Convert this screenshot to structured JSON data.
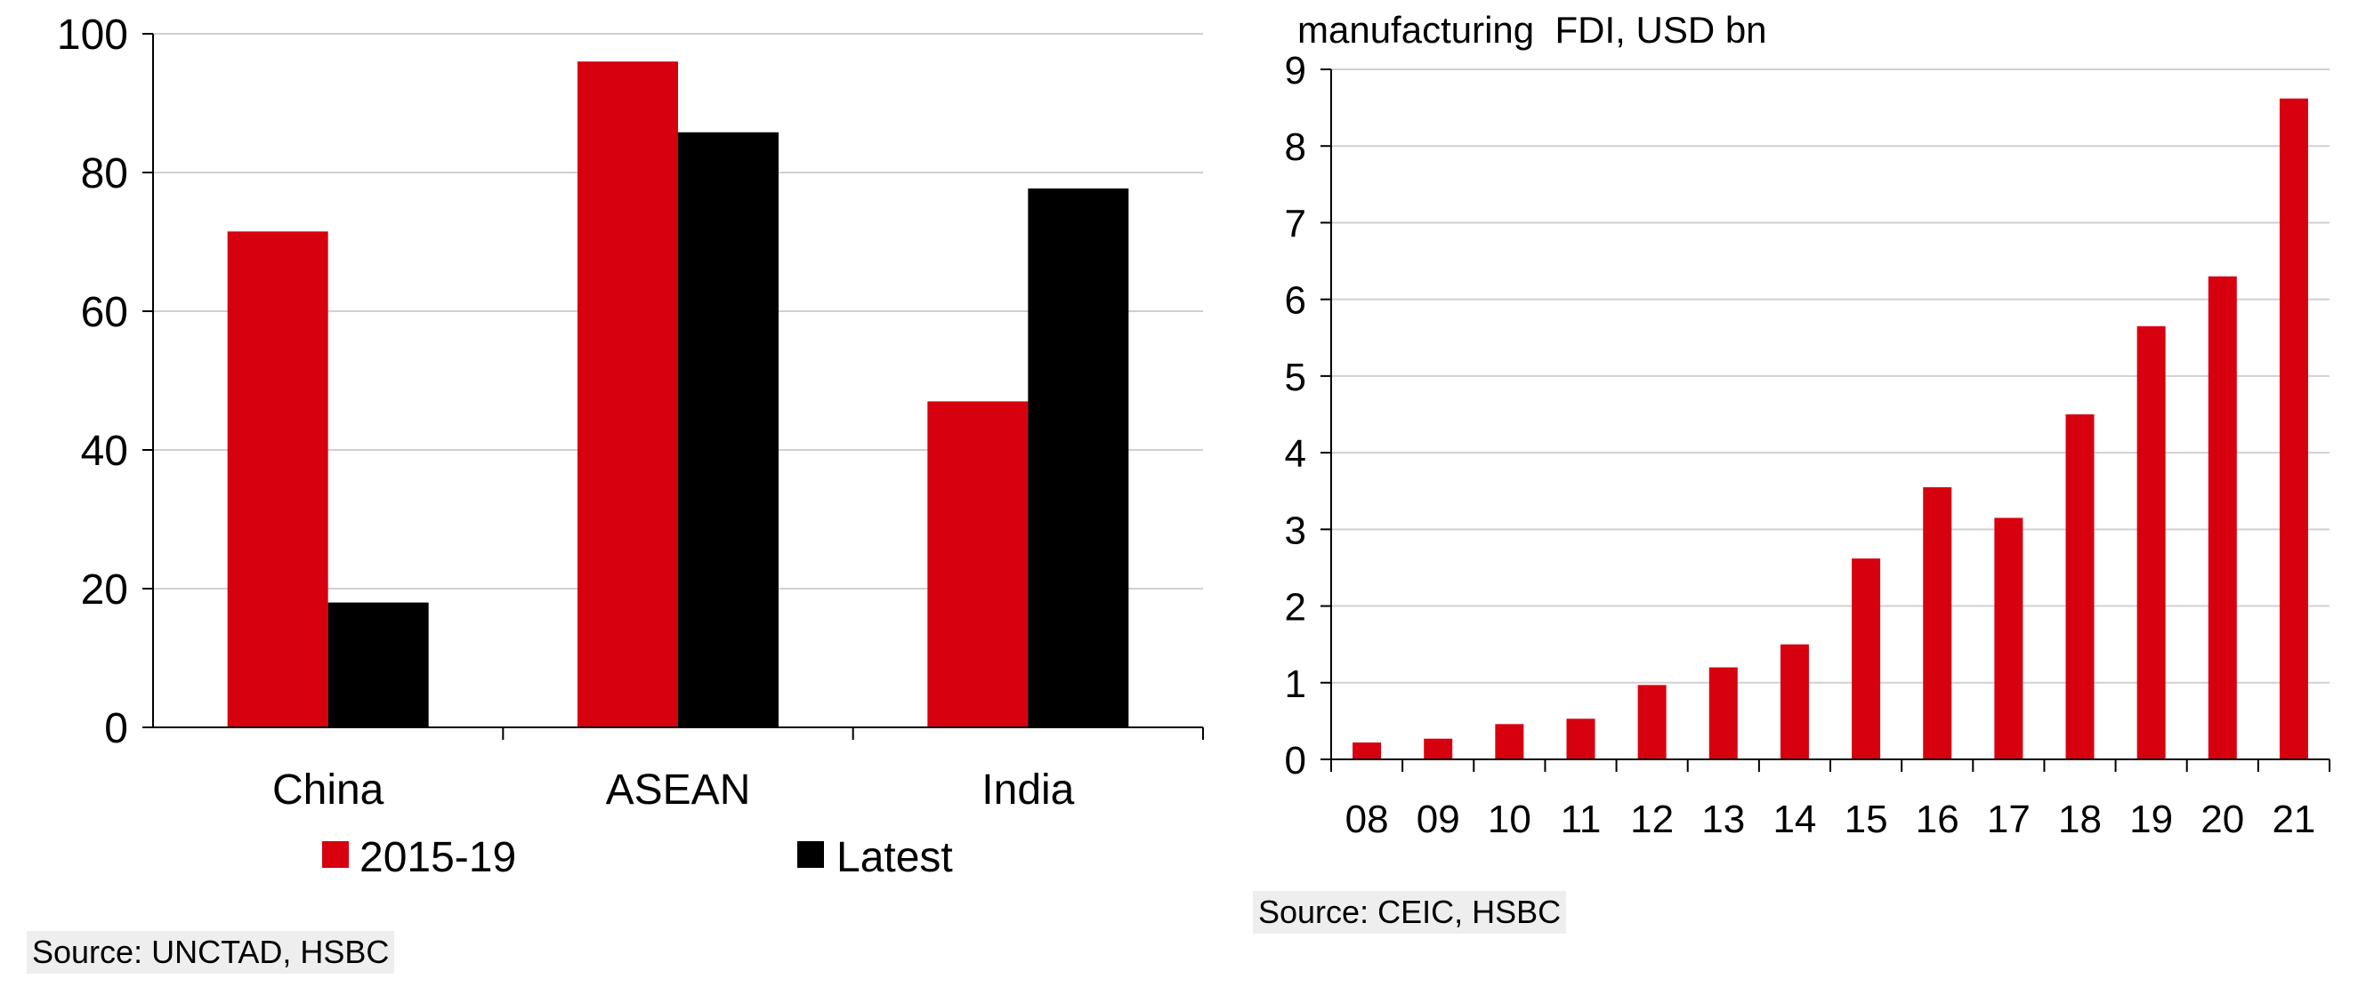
{
  "chart_data": [
    {
      "type": "bar",
      "title": "",
      "xlabel": "",
      "ylabel": "",
      "categories": [
        "China",
        "ASEAN",
        "India"
      ],
      "series": [
        {
          "name": "2015-19",
          "values": [
            71.5,
            96,
            47
          ],
          "color": "#d7000f"
        },
        {
          "name": "Latest",
          "values": [
            18,
            85.8,
            77.7
          ],
          "color": "#000000"
        }
      ],
      "ylim": [
        0,
        100
      ],
      "yticks": [
        "0",
        "20",
        "40",
        "60",
        "80",
        "100"
      ],
      "grid": true,
      "legend": [
        "2015-19",
        "Latest"
      ],
      "legend_position": "bottom",
      "source": "Source: UNCTAD, HSBC"
    },
    {
      "type": "bar",
      "title": "manufacturing  FDI, USD bn",
      "xlabel": "",
      "ylabel": "",
      "categories": [
        "08",
        "09",
        "10",
        "11",
        "12",
        "13",
        "14",
        "15",
        "16",
        "17",
        "18",
        "19",
        "20",
        "21"
      ],
      "series": [
        {
          "name": "manufacturing FDI",
          "values": [
            0.22,
            0.27,
            0.46,
            0.53,
            0.97,
            1.2,
            1.5,
            2.62,
            3.55,
            3.15,
            4.5,
            5.65,
            6.3,
            8.62
          ],
          "color": "#d7000f"
        }
      ],
      "ylim": [
        0,
        9
      ],
      "yticks": [
        "0",
        "1",
        "2",
        "3",
        "4",
        "5",
        "6",
        "7",
        "8",
        "9"
      ],
      "grid": true,
      "source": "Source: CEIC, HSBC"
    }
  ]
}
